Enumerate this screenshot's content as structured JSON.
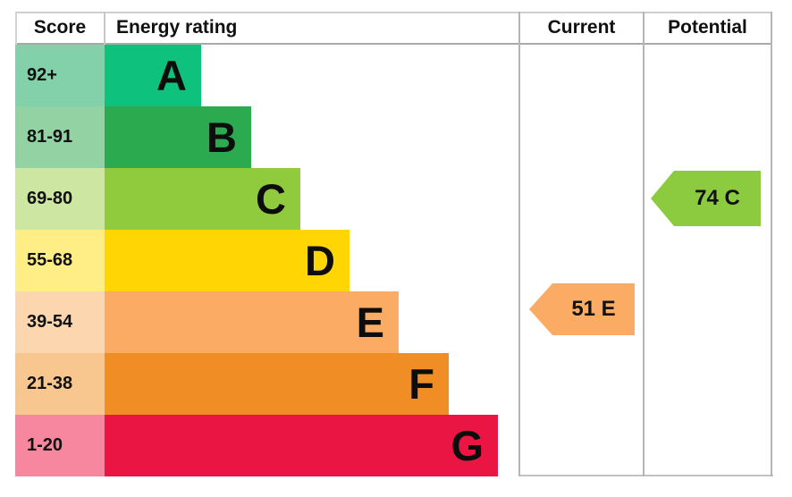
{
  "header": {
    "score": "Score",
    "energy_rating": "Energy rating",
    "current": "Current",
    "potential": "Potential"
  },
  "bands": [
    {
      "letter": "A",
      "score": "92+",
      "bar_color": "#0ec17d",
      "score_bg": "#82d1aa"
    },
    {
      "letter": "B",
      "score": "81-91",
      "bar_color": "#2caa50",
      "score_bg": "#92d2a3"
    },
    {
      "letter": "C",
      "score": "69-80",
      "bar_color": "#8fcb3c",
      "score_bg": "#cde6a2"
    },
    {
      "letter": "D",
      "score": "55-68",
      "bar_color": "#ffd503",
      "score_bg": "#ffee85"
    },
    {
      "letter": "E",
      "score": "39-54",
      "bar_color": "#fbab64",
      "score_bg": "#fcd6ae"
    },
    {
      "letter": "F",
      "score": "21-38",
      "bar_color": "#f08d25",
      "score_bg": "#f8c68f"
    },
    {
      "letter": "G",
      "score": "1-20",
      "bar_color": "#ea1543",
      "score_bg": "#f7879f"
    }
  ],
  "current_rating": {
    "label": "51 E",
    "color": "#fbab64"
  },
  "potential_rating": {
    "label": "74 C",
    "color": "#8ccb40"
  },
  "chart_data": {
    "type": "bar",
    "title": "Energy rating",
    "categories": [
      "A",
      "B",
      "C",
      "D",
      "E",
      "F",
      "G"
    ],
    "score_ranges": [
      "92+",
      "81-91",
      "69-80",
      "55-68",
      "39-54",
      "21-38",
      "1-20"
    ],
    "band_colors": [
      "#0ec17d",
      "#2caa50",
      "#8fcb3c",
      "#ffd503",
      "#fbab64",
      "#f08d25",
      "#ea1543"
    ],
    "column_headers": [
      "Score",
      "Energy rating",
      "Current",
      "Potential"
    ],
    "current": {
      "value": 51,
      "band": "E"
    },
    "potential": {
      "value": 74,
      "band": "C"
    },
    "orientation": "horizontal-staircase",
    "grid": false,
    "legend_position": "none"
  }
}
